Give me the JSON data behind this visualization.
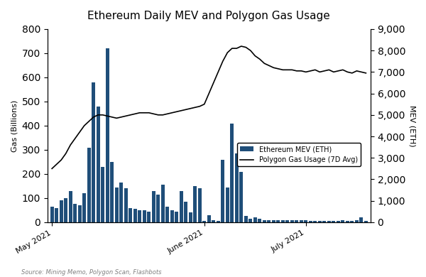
{
  "title": "Ethereum Daily MEV and Polygon Gas Usage",
  "xlabel": "",
  "ylabel_left": "Gas (Billions)",
  "ylabel_right": "MEV (ETH)",
  "source_text": "Source: Mining Memo, Polygon Scan, Flashbots",
  "bar_color": "#1f4e79",
  "line_color": "#000000",
  "ylim_left": [
    0,
    800
  ],
  "ylim_right": [
    0,
    9000
  ],
  "yticks_left": [
    0,
    100,
    200,
    300,
    400,
    500,
    600,
    700,
    800
  ],
  "yticks_right": [
    0,
    1000,
    2000,
    3000,
    4000,
    5000,
    6000,
    7000,
    8000,
    9000
  ],
  "xtick_labels": [
    "May 2021",
    "June 2021",
    "July 2021"
  ],
  "legend_bar": "Ethereum MEV (ETH)",
  "legend_line": "Polygon Gas Usage (7D Avg)",
  "bar_values": [
    65,
    60,
    90,
    100,
    130,
    75,
    70,
    120,
    310,
    580,
    480,
    230,
    720,
    250,
    145,
    165,
    140,
    60,
    55,
    50,
    50,
    45,
    130,
    115,
    155,
    65,
    50,
    45,
    130,
    85,
    40,
    150,
    140,
    5,
    30,
    10,
    5,
    260,
    145,
    410,
    285,
    210,
    25,
    15,
    20,
    15,
    10,
    10,
    10,
    8,
    8,
    10,
    8,
    8,
    8,
    8,
    5,
    5,
    5,
    5,
    5,
    5,
    5,
    8,
    5,
    5,
    8,
    20,
    5
  ],
  "line_values": [
    2500,
    2700,
    2900,
    3200,
    3600,
    3900,
    4200,
    4500,
    4700,
    4900,
    5000,
    5000,
    4950,
    4900,
    4850,
    4900,
    4950,
    5000,
    5050,
    5100,
    5100,
    5100,
    5050,
    5000,
    5000,
    5050,
    5100,
    5150,
    5200,
    5250,
    5300,
    5350,
    5400,
    5500,
    6000,
    6500,
    7000,
    7500,
    7900,
    8100,
    8100,
    8200,
    8150,
    8000,
    7750,
    7600,
    7400,
    7300,
    7200,
    7150,
    7100,
    7100,
    7100,
    7050,
    7050,
    7000,
    7050,
    7100,
    7000,
    7050,
    7100,
    7000,
    7050,
    7100,
    7000,
    6950,
    7050,
    7000,
    6950
  ]
}
